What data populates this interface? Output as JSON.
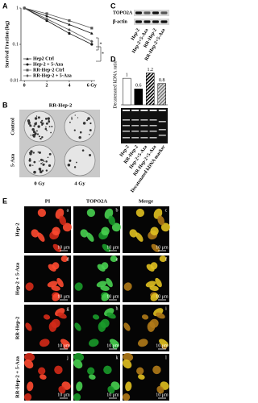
{
  "chart_data": [
    {
      "type": "line",
      "panel": "A",
      "ylabel": "Survival Fraction (log)",
      "x": [
        0,
        2,
        4,
        6
      ],
      "xlim": [
        -0.3,
        6.3
      ],
      "xticks": [
        0,
        2,
        4,
        {
          "value": 6,
          "label": "6 Gy"
        }
      ],
      "ylim": [
        0.01,
        1
      ],
      "yticks": [
        0.01,
        0.1,
        1
      ],
      "log_y": true,
      "legend": "lower-left",
      "series": [
        {
          "name": "Hep2 Ctrl",
          "color": "#111111",
          "marker": "triangle",
          "values": [
            1,
            0.6,
            0.35,
            0.2
          ]
        },
        {
          "name": "Hep-2 + 5-Aza",
          "color": "#111111",
          "marker": "circle",
          "values": [
            1,
            0.45,
            0.2,
            0.1
          ]
        },
        {
          "name": "RR-Hep-2 Ctrl",
          "color": "#555555",
          "marker": "square",
          "values": [
            1,
            0.7,
            0.45,
            0.28
          ]
        },
        {
          "name": "RR-Hep-2 + 5-Aza",
          "color": "#555555",
          "marker": "diamond",
          "values": [
            1,
            0.5,
            0.25,
            0.12
          ]
        }
      ],
      "annotations": [
        "*",
        "*"
      ]
    },
    {
      "type": "bar",
      "panel": "D",
      "ylabel": "Decatenated kDNA ratio",
      "categories": [
        null,
        null,
        null,
        null
      ],
      "values": [
        1,
        0.6,
        1.2,
        0.8
      ],
      "colors": [
        "#ffffff",
        "#000000",
        "hatch-dark",
        "hatch-gray"
      ],
      "ylim": [
        0,
        1.4
      ]
    }
  ],
  "panel_b": {
    "panel": "B",
    "title": "RR-Hep-2",
    "rows": [
      "Control",
      "5-Aza"
    ],
    "columns": [
      "0 Gy",
      "4 Gy"
    ]
  },
  "panel_c": {
    "panel": "C",
    "bands": [
      "TOPO2A",
      "β-actin"
    ],
    "lanes": [
      "Hep-2",
      "Hep-2+5-Aza",
      "RR-Hep-2",
      "RR-Hep-2+5-Aza"
    ]
  },
  "panel_d_gel": {
    "lanes": [
      "Hep-2",
      "RR-Hep-2",
      "Hep-2+5-Aza",
      "RR-Hep-2+5-Aza",
      "Decatenated kDNA marker"
    ]
  },
  "panel_e": {
    "panel": "E",
    "columns": [
      "PI",
      "TOPO2A",
      "Merge"
    ],
    "rows": [
      "Hep-2",
      "Hep-2 + 5-Aza",
      "RR-Hep-2",
      "RR-Hep-2 + 5-Aza"
    ],
    "cell_letters": [
      [
        "a",
        "b",
        "c"
      ],
      [
        "d",
        "e",
        "f"
      ],
      [
        "g",
        "h",
        "i"
      ],
      [
        "j",
        "k",
        "l"
      ]
    ],
    "scale_bar": "10 μm"
  }
}
